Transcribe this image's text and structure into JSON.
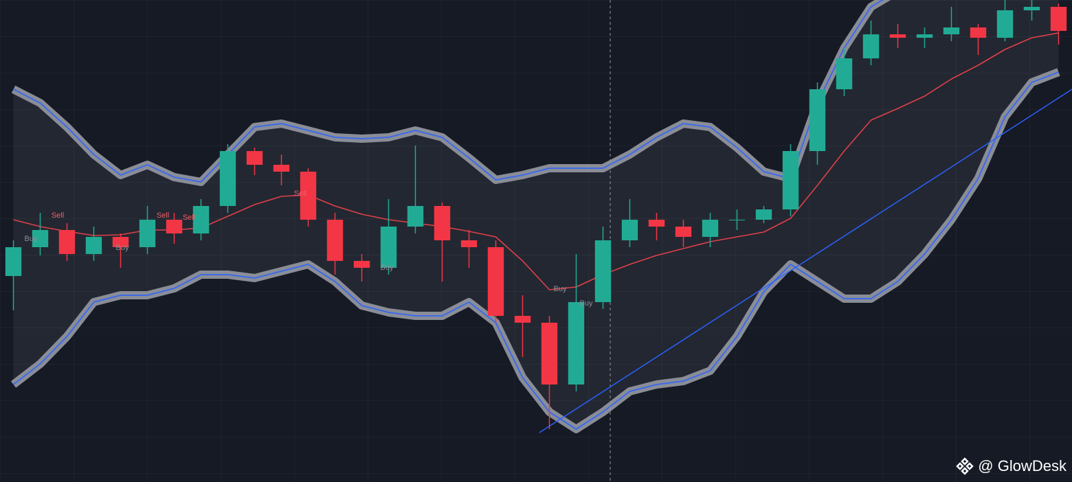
{
  "chart_data": {
    "type": "candlestick",
    "categories": [
      null,
      null,
      null,
      null,
      null,
      null,
      null,
      null,
      null,
      null,
      null,
      null,
      null,
      null,
      null,
      null,
      null,
      null,
      null,
      null,
      null,
      null,
      null,
      null,
      null,
      null,
      null,
      null,
      null,
      null,
      null,
      null,
      null,
      null,
      null,
      null,
      null,
      null,
      null,
      null
    ],
    "open": [
      300,
      342,
      367,
      332,
      357,
      342,
      382,
      362,
      402,
      482,
      462,
      452,
      382,
      322,
      312,
      372,
      402,
      352,
      342,
      242,
      232,
      142,
      262,
      352,
      382,
      372,
      357,
      382,
      382,
      397,
      482,
      572,
      617,
      652,
      647,
      652,
      662,
      647,
      687,
      692
    ],
    "high": [
      352,
      392,
      377,
      372,
      362,
      402,
      392,
      412,
      492,
      487,
      477,
      457,
      392,
      332,
      412,
      490,
      407,
      367,
      352,
      272,
      242,
      332,
      372,
      412,
      392,
      382,
      392,
      397,
      402,
      492,
      582,
      632,
      672,
      667,
      662,
      692,
      667,
      702,
      702,
      697
    ],
    "low": [
      250,
      330,
      322,
      322,
      312,
      332,
      347,
      352,
      392,
      447,
      432,
      372,
      302,
      292,
      302,
      362,
      292,
      312,
      232,
      182,
      77,
      132,
      252,
      342,
      352,
      342,
      342,
      367,
      377,
      387,
      462,
      562,
      607,
      632,
      632,
      642,
      622,
      642,
      672,
      637
    ],
    "close": [
      342,
      367,
      332,
      357,
      342,
      382,
      362,
      402,
      482,
      462,
      452,
      382,
      322,
      312,
      372,
      402,
      352,
      342,
      242,
      232,
      142,
      262,
      352,
      382,
      372,
      357,
      382,
      382,
      397,
      482,
      572,
      617,
      652,
      647,
      652,
      662,
      647,
      687,
      692,
      657
    ],
    "up_color": "#22ab94",
    "down_color": "#f23645",
    "upper": [
      572,
      552,
      517,
      477,
      447,
      462,
      444,
      437,
      477,
      517,
      522,
      512,
      502,
      500,
      502,
      512,
      502,
      472,
      440,
      447,
      457,
      457,
      457,
      477,
      502,
      522,
      517,
      487,
      452,
      442,
      552,
      632,
      692,
      715,
      720,
      725,
      730,
      735,
      740,
      740
    ],
    "middle": [
      382,
      372,
      365,
      359,
      360,
      367,
      367,
      370,
      387,
      404,
      416,
      418,
      402,
      390,
      382,
      377,
      372,
      365,
      357,
      322,
      280,
      284,
      302,
      317,
      330,
      340,
      350,
      357,
      364,
      384,
      432,
      482,
      527,
      544,
      562,
      587,
      607,
      630,
      647,
      654
    ],
    "lower": [
      142,
      172,
      212,
      262,
      272,
      272,
      282,
      302,
      302,
      297,
      307,
      317,
      292,
      257,
      247,
      242,
      242,
      262,
      232,
      152,
      102,
      77,
      102,
      132,
      142,
      147,
      162,
      212,
      277,
      317,
      292,
      267,
      267,
      292,
      332,
      382,
      442,
      532,
      582,
      597
    ],
    "band_color": "#8a8d96",
    "middle_color": "#e0404a",
    "ylim": [
      0,
      702
    ],
    "signals": [
      "Buy",
      "Sell",
      "Buy",
      "Sell",
      "Sell",
      "Sell",
      "Buy",
      "Buy",
      "Buy"
    ]
  },
  "watermark": "@ GlowDesk"
}
